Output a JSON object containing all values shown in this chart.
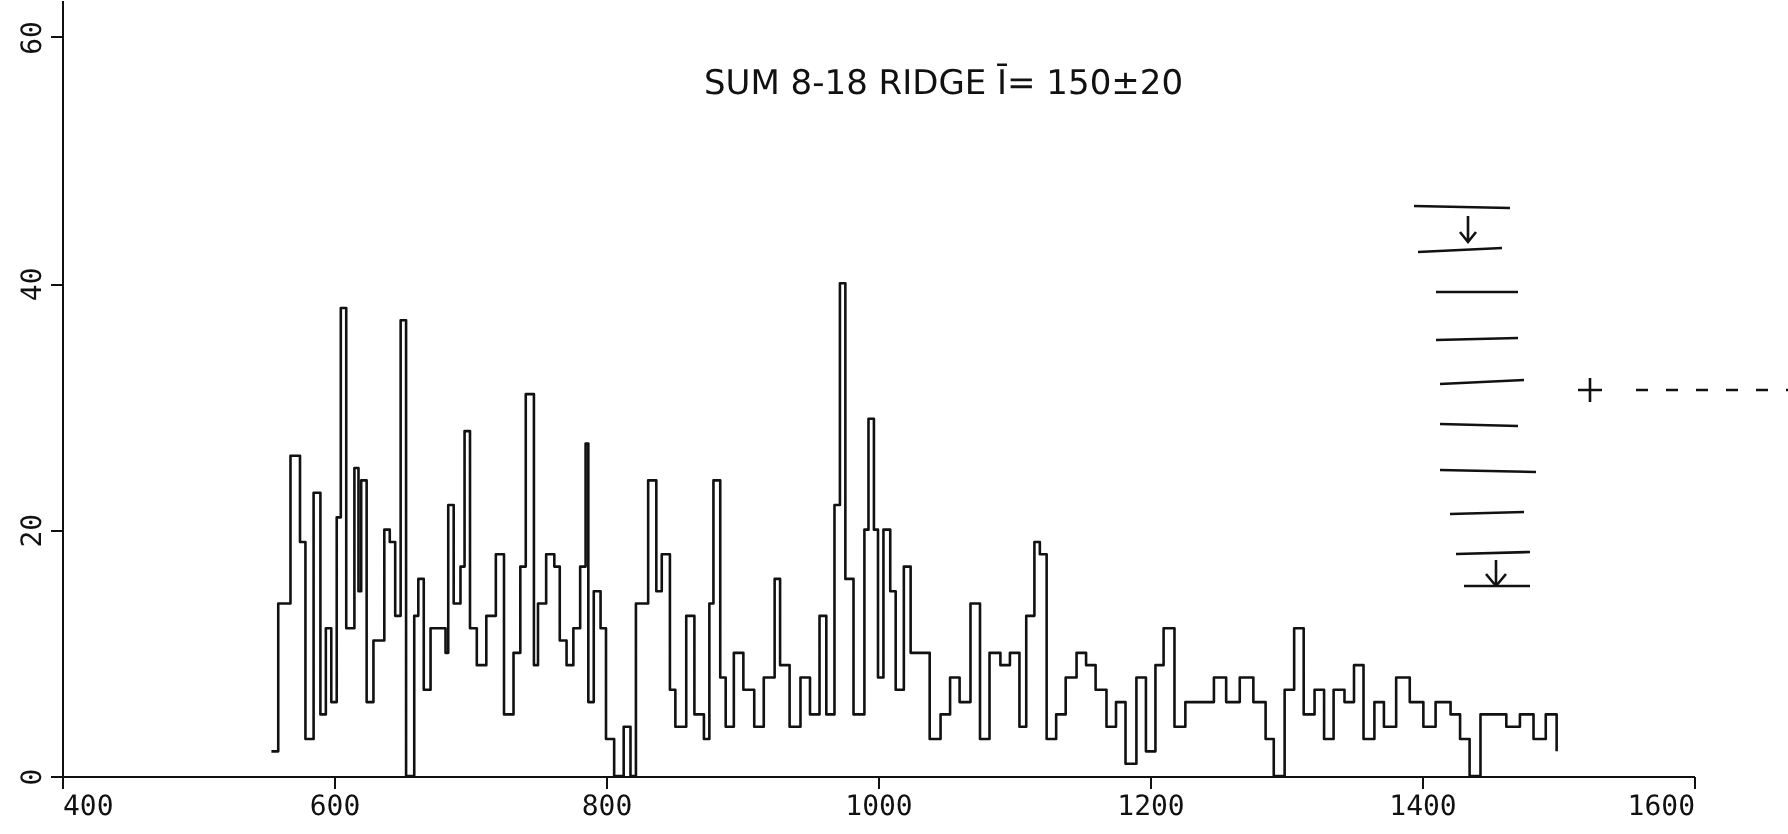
{
  "chart_data": {
    "type": "step",
    "annotations": [
      "SUM 8-18 RIDGE Ī= 150±20"
    ],
    "x": [
      554,
      559,
      568,
      575,
      579,
      585,
      590,
      594,
      598,
      602,
      605,
      609,
      615,
      618,
      620,
      624,
      629,
      637,
      641,
      645,
      649,
      653,
      659,
      662,
      666,
      671,
      678,
      682,
      684,
      688,
      693,
      696,
      700,
      705,
      712,
      719,
      725,
      732,
      737,
      741,
      747,
      750,
      756,
      762,
      766,
      771,
      776,
      781,
      785,
      787,
      791,
      796,
      800,
      806,
      813,
      818,
      822,
      828,
      831,
      837,
      841,
      847,
      851,
      859,
      865,
      872,
      876,
      879,
      884,
      888,
      894,
      901,
      909,
      916,
      924,
      928,
      935,
      943,
      950,
      957,
      962,
      968,
      972,
      976,
      982,
      990,
      993,
      997,
      1000,
      1004,
      1009,
      1013,
      1019,
      1024,
      1031,
      1038,
      1046,
      1053,
      1060,
      1068,
      1075,
      1082,
      1090,
      1097,
      1104,
      1109,
      1115,
      1119,
      1124,
      1131,
      1138,
      1146,
      1153,
      1160,
      1168,
      1175,
      1182,
      1190,
      1197,
      1204,
      1210,
      1218,
      1226,
      1237,
      1247,
      1256,
      1266,
      1276,
      1285,
      1291,
      1299,
      1306,
      1313,
      1321,
      1328,
      1335,
      1343,
      1350,
      1357,
      1365,
      1372,
      1381,
      1391,
      1401,
      1410,
      1421,
      1428,
      1435,
      1443,
      1453,
      1462,
      1472,
      1482,
      1491,
      1499
    ],
    "values": [
      2,
      14,
      26,
      19,
      3,
      23,
      5,
      12,
      6,
      21,
      38,
      12,
      25,
      15,
      24,
      6,
      11,
      20,
      19,
      13,
      37,
      0,
      13,
      16,
      7,
      12,
      12,
      10,
      22,
      14,
      17,
      28,
      12,
      9,
      13,
      18,
      5,
      10,
      17,
      31,
      9,
      14,
      18,
      17,
      11,
      9,
      12,
      17,
      27,
      6,
      15,
      12,
      3,
      0,
      4,
      0,
      14,
      14,
      24,
      15,
      18,
      7,
      4,
      13,
      5,
      3,
      14,
      24,
      8,
      4,
      10,
      7,
      4,
      8,
      16,
      9,
      4,
      8,
      5,
      13,
      5,
      22,
      40,
      16,
      5,
      20,
      29,
      20,
      8,
      20,
      15,
      7,
      17,
      10,
      10,
      3,
      5,
      8,
      6,
      14,
      3,
      10,
      9,
      10,
      4,
      13,
      19,
      18,
      3,
      5,
      8,
      10,
      9,
      7,
      4,
      6,
      1,
      8,
      2,
      9,
      12,
      4,
      6,
      6,
      8,
      6,
      8,
      6,
      3,
      0,
      7,
      12,
      5,
      7,
      3,
      7,
      6,
      9,
      3,
      6,
      4,
      8,
      6,
      4,
      6,
      5,
      3,
      0,
      5,
      5,
      4,
      5,
      3,
      5,
      2
    ],
    "color": "#111111",
    "xlim": [
      400,
      1600
    ],
    "xticks": [
      400,
      600,
      800,
      1000,
      1200,
      1400,
      1600
    ],
    "ylim": [
      0,
      63
    ],
    "yticks": [
      0,
      20,
      40,
      60
    ],
    "grid": false,
    "marker": "none",
    "line_style": "solid"
  }
}
